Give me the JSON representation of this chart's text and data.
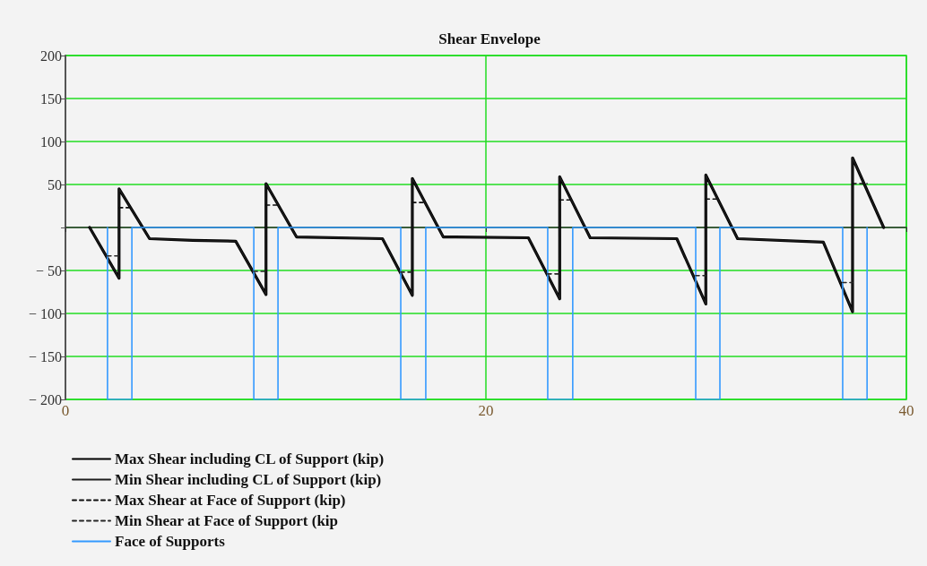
{
  "chart_data": {
    "type": "line",
    "title": "Shear Envelope",
    "xlim": [
      0,
      40
    ],
    "xticks": [
      0,
      20,
      40
    ],
    "ylim": [
      -200,
      200
    ],
    "yticks": [
      -200,
      -150,
      -100,
      -50,
      {
        "value": 0,
        "label": null
      },
      50,
      100,
      150,
      200
    ],
    "grid": true,
    "legend": "bottom left",
    "marker": "none",
    "series": [
      {
        "name": "Max Shear including CL of Support (kip)",
        "color": "#000000",
        "line_style": "solid",
        "x": [
          1.15,
          2.55,
          2.55,
          4.0,
          6.05,
          8.1,
          9.54,
          9.54,
          10.99,
          15.08,
          16.5,
          16.5,
          17.97,
          22.02,
          23.51,
          23.51,
          24.96,
          29.08,
          30.46,
          30.46,
          31.97,
          36.05,
          37.44,
          37.44,
          38.92
        ],
        "values": [
          0,
          -59,
          45,
          -13,
          -15,
          -16,
          -78,
          51,
          -11,
          -13,
          -79,
          57,
          -11,
          -12,
          -83,
          59,
          -12,
          -13,
          -89,
          61,
          -13,
          -17,
          -98,
          81,
          0
        ]
      },
      {
        "name": "Min Shear including CL of Support (kip)",
        "color": "#1c1c1c",
        "line_style": "solid",
        "x": [
          1.15,
          2.55,
          2.55,
          4.0,
          6.05,
          8.1,
          9.54,
          9.54,
          10.99,
          15.08,
          16.5,
          16.5,
          17.97,
          22.02,
          23.51,
          23.51,
          24.96,
          29.08,
          30.46,
          30.46,
          31.97,
          36.05,
          37.44,
          37.44,
          38.92
        ],
        "values": [
          0,
          -59,
          45,
          -13,
          -15,
          -16,
          -78,
          51,
          -11,
          -13,
          -79,
          57,
          -11,
          -12,
          -83,
          59,
          -12,
          -13,
          -89,
          61,
          -13,
          -17,
          -98,
          81,
          0
        ]
      },
      {
        "name": "Max Shear at Face of Support (kip)",
        "color": "#0e0e0e",
        "line_style": "dashed",
        "x": [
          2.55,
          3.16,
          null,
          9.54,
          10.11,
          null,
          16.5,
          17.14,
          null,
          23.51,
          24.13,
          null,
          30.46,
          31.13,
          null,
          37.44,
          38.13
        ],
        "values": [
          23,
          23,
          null,
          26,
          26,
          null,
          29,
          29,
          null,
          32,
          32,
          null,
          33,
          33,
          null,
          51,
          51
        ]
      },
      {
        "name": "Min Shear at Face of Support (kip",
        "color": "#262626",
        "line_style": "dashed",
        "x": [
          2.0,
          2.55,
          null,
          8.96,
          9.54,
          null,
          15.95,
          16.5,
          null,
          22.94,
          23.51,
          null,
          29.98,
          30.46,
          null,
          36.97,
          37.44
        ],
        "values": [
          -33,
          -33,
          null,
          -51,
          -51,
          null,
          -52,
          -52,
          null,
          -54,
          -54,
          null,
          -56,
          -56,
          null,
          -64,
          -64
        ]
      },
      {
        "name": "Face of Supports",
        "color": "#3399ff",
        "line_style": "solid",
        "x": [
          2.0,
          2.0,
          3.16,
          3.16,
          8.96,
          8.96,
          10.11,
          10.11,
          15.95,
          15.95,
          17.14,
          17.14,
          22.94,
          22.94,
          24.13,
          24.13,
          29.98,
          29.98,
          31.13,
          31.13,
          36.97,
          36.97,
          38.13,
          38.13
        ],
        "values": [
          0,
          -200,
          -200,
          0,
          0,
          -200,
          -200,
          0,
          0,
          -200,
          -200,
          0,
          0,
          -200,
          -200,
          0,
          0,
          -200,
          -200,
          0,
          0,
          -200,
          -200,
          0
        ]
      }
    ]
  }
}
